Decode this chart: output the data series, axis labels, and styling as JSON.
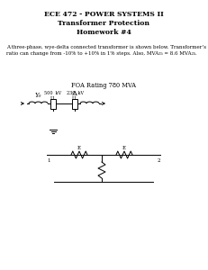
{
  "title1": "ECE 472 - POWER SYSTEMS II",
  "title2": "Transformer Protection",
  "title3": "Homework #4",
  "body_text": "A three-phase, wye-delta connected transformer is shown below. Transformer’s turns\nratio can change from -10% to +10% in 1% steps. Also, MVA₂₅ = 8.6 MVA₂₅.",
  "foa_label": "FOA Rating 780 MVA",
  "wye_label": "Y₀",
  "delta_label": "Δ",
  "v1_label": "500  kV\nLL",
  "v2_label": "230  kV\nLL",
  "bg_color": "#ffffff"
}
